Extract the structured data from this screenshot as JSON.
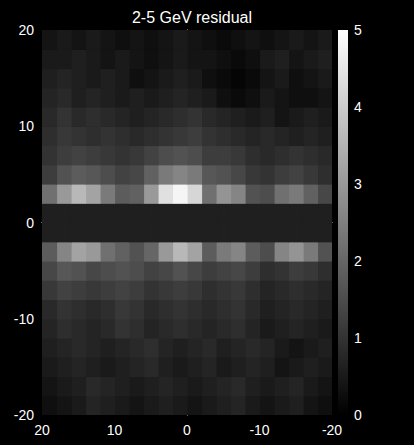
{
  "chart_data": {
    "type": "heatmap",
    "title": "2-5 GeV residual",
    "x": [
      -19,
      -17,
      -15,
      -13,
      -11,
      -9,
      -7,
      -5,
      -3,
      -1,
      1,
      3,
      5,
      7,
      9,
      11,
      13,
      15,
      17,
      19
    ],
    "y": [
      -19,
      -17,
      -15,
      -13,
      -11,
      -9,
      -7,
      -5,
      -3,
      -1,
      1,
      3,
      5,
      7,
      9,
      11,
      13,
      15,
      17,
      19
    ],
    "z": [
      [
        0.3,
        0.4,
        0.6,
        0.5,
        0.4,
        0.5,
        0.7,
        0.6,
        0.5,
        0.4,
        0.5,
        0.6,
        0.5,
        0.4,
        0.5,
        0.6,
        0.7,
        0.5,
        0.4,
        0.3
      ],
      [
        0.4,
        0.5,
        0.7,
        0.6,
        0.5,
        0.6,
        0.8,
        0.7,
        0.6,
        0.5,
        0.6,
        0.7,
        0.6,
        0.5,
        0.6,
        0.7,
        0.8,
        0.6,
        0.5,
        0.4
      ],
      [
        0.5,
        0.6,
        0.5,
        0.4,
        0.6,
        0.7,
        0.6,
        0.5,
        0.7,
        0.6,
        0.5,
        0.6,
        0.8,
        0.7,
        0.6,
        0.5,
        0.6,
        0.7,
        0.6,
        0.5
      ],
      [
        0.6,
        0.5,
        0.4,
        0.5,
        0.7,
        0.8,
        0.7,
        0.6,
        0.8,
        0.7,
        0.6,
        0.7,
        0.9,
        0.8,
        0.7,
        0.6,
        0.7,
        0.8,
        0.7,
        0.6
      ],
      [
        0.5,
        0.6,
        0.7,
        0.6,
        0.5,
        0.7,
        0.9,
        0.8,
        0.7,
        0.8,
        0.9,
        0.8,
        0.7,
        0.9,
        1.0,
        0.8,
        0.7,
        0.8,
        0.9,
        0.7
      ],
      [
        0.6,
        0.7,
        0.8,
        0.7,
        0.6,
        0.8,
        1.0,
        0.9,
        0.8,
        0.9,
        1.0,
        0.9,
        0.8,
        1.0,
        1.1,
        0.9,
        0.8,
        0.9,
        1.0,
        0.8
      ],
      [
        0.7,
        0.8,
        0.9,
        0.8,
        0.7,
        0.9,
        1.1,
        1.0,
        0.9,
        1.1,
        1.2,
        1.1,
        1.0,
        1.2,
        1.3,
        1.2,
        1.1,
        1.2,
        1.3,
        1.1
      ],
      [
        0.9,
        1.1,
        1.2,
        1.0,
        0.9,
        1.2,
        1.4,
        1.3,
        1.2,
        1.4,
        1.6,
        1.4,
        1.3,
        1.5,
        1.6,
        1.5,
        1.4,
        1.6,
        1.7,
        1.4
      ],
      [
        1.6,
        2.4,
        2.9,
        2.6,
        1.5,
        1.8,
        2.6,
        2.4,
        1.8,
        3.2,
        3.6,
        3.0,
        2.0,
        1.6,
        1.9,
        2.2,
        3.0,
        3.2,
        2.6,
        1.8
      ],
      [
        0.6,
        0.6,
        0.6,
        0.6,
        0.6,
        0.6,
        0.6,
        0.6,
        0.6,
        0.6,
        0.6,
        0.6,
        0.6,
        0.6,
        0.6,
        0.6,
        0.6,
        0.6,
        0.6,
        0.6
      ],
      [
        0.6,
        0.6,
        0.6,
        0.6,
        0.6,
        0.6,
        0.6,
        0.6,
        0.6,
        0.6,
        0.6,
        0.6,
        0.6,
        0.6,
        0.6,
        0.6,
        0.6,
        0.6,
        0.6,
        0.6
      ],
      [
        1.4,
        1.9,
        2.4,
        2.2,
        1.5,
        1.6,
        2.6,
        2.9,
        2.2,
        4.2,
        4.8,
        4.4,
        3.0,
        1.9,
        1.8,
        2.4,
        3.2,
        3.6,
        3.0,
        2.2
      ],
      [
        0.9,
        1.1,
        1.3,
        1.2,
        1.0,
        1.1,
        1.4,
        1.6,
        1.7,
        2.4,
        2.6,
        2.4,
        1.9,
        1.4,
        1.3,
        1.5,
        1.7,
        1.8,
        1.6,
        1.2
      ],
      [
        0.8,
        0.9,
        1.0,
        0.9,
        0.8,
        0.9,
        1.1,
        1.2,
        1.2,
        1.5,
        1.6,
        1.5,
        1.3,
        1.1,
        1.0,
        1.1,
        1.2,
        1.3,
        1.2,
        1.0
      ],
      [
        0.6,
        0.7,
        0.6,
        0.7,
        0.8,
        0.7,
        0.8,
        0.9,
        1.0,
        1.2,
        1.1,
        1.0,
        0.9,
        0.8,
        0.9,
        1.0,
        0.9,
        1.0,
        1.1,
        0.9
      ],
      [
        0.5,
        0.6,
        0.5,
        0.4,
        0.6,
        0.5,
        0.6,
        0.7,
        0.8,
        1.0,
        0.9,
        0.8,
        0.7,
        0.6,
        0.7,
        0.8,
        0.9,
        0.8,
        1.0,
        0.8
      ],
      [
        0.4,
        0.3,
        0.3,
        0.4,
        0.5,
        0.3,
        0.2,
        0.3,
        0.5,
        0.6,
        0.7,
        0.6,
        0.5,
        0.6,
        0.5,
        0.6,
        0.7,
        0.6,
        0.8,
        0.7
      ],
      [
        0.5,
        0.4,
        0.3,
        0.5,
        0.4,
        0.2,
        0.1,
        0.2,
        0.3,
        0.5,
        0.6,
        0.5,
        0.4,
        0.3,
        0.5,
        0.6,
        0.5,
        0.6,
        0.7,
        0.6
      ],
      [
        0.6,
        0.5,
        0.4,
        0.6,
        0.5,
        0.3,
        0.2,
        0.3,
        0.4,
        0.4,
        0.5,
        0.4,
        0.3,
        0.4,
        0.5,
        0.4,
        0.5,
        0.6,
        0.5,
        0.5
      ],
      [
        0.5,
        0.4,
        0.5,
        0.4,
        0.3,
        0.4,
        0.3,
        0.2,
        0.3,
        0.4,
        0.5,
        0.4,
        0.3,
        0.4,
        0.3,
        0.4,
        0.5,
        0.4,
        0.5,
        0.4
      ]
    ],
    "xlim": [
      20,
      -20
    ],
    "xticks": [
      20,
      10,
      0,
      -10,
      -20
    ],
    "ylim": [
      -20,
      20
    ],
    "yticks": [
      -20,
      -10,
      0,
      10,
      20
    ],
    "colorbar": {
      "range": [
        0,
        5
      ],
      "ticks": [
        0,
        1,
        2,
        3,
        4,
        5
      ]
    },
    "grid": false
  }
}
